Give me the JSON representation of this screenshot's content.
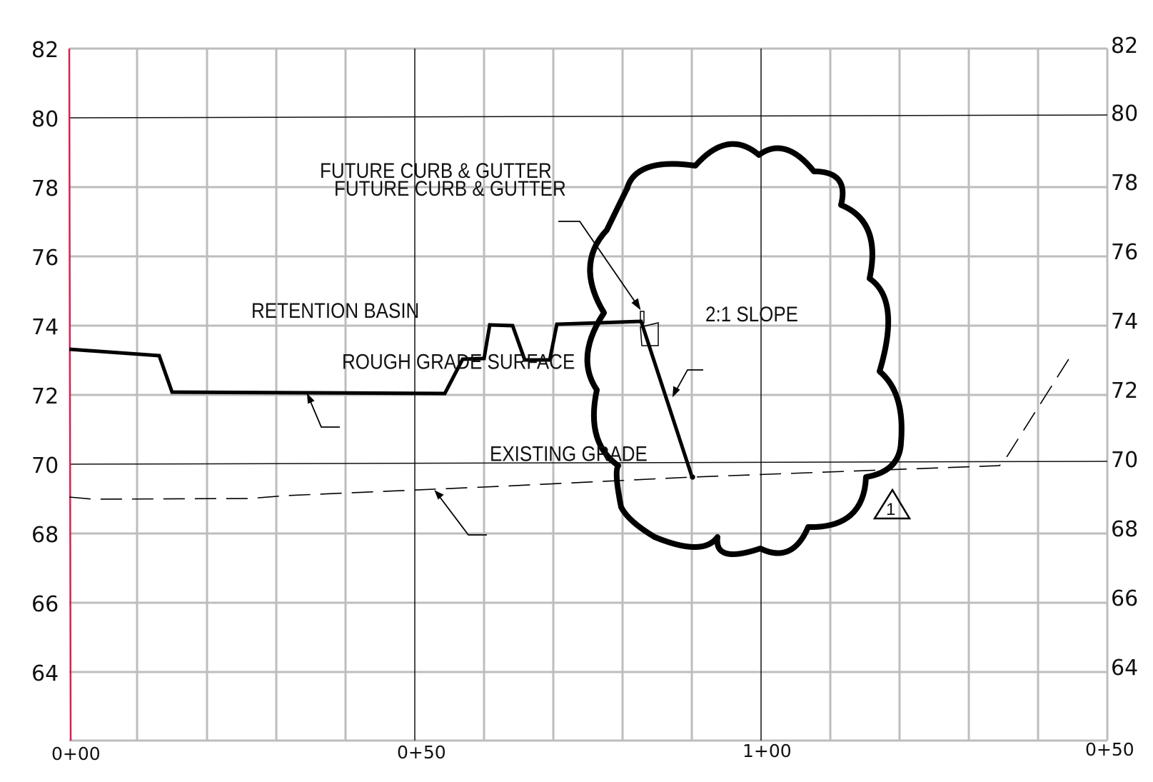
{
  "profile": {
    "elevation_labels_left": [
      "82",
      "80",
      "78",
      "76",
      "74",
      "72",
      "70",
      "68",
      "66",
      "64"
    ],
    "elevation_labels_right": [
      "82",
      "80",
      "78",
      "76",
      "74",
      "72",
      "70",
      "68",
      "66",
      "64"
    ],
    "station_labels": [
      "0+00",
      "0+50",
      "1+00",
      "0+50"
    ],
    "notes": {
      "future_curb_1": "FUTURE CURB & GUTTER",
      "future_curb_2": "FUTURE CURB & GUTTER",
      "retention_basin": "RETENTION BASIN",
      "rough_grade": "ROUGH GRADE SURFACE",
      "slope": "2:1 SLOPE",
      "existing_grade": "EXISTING GRADE"
    },
    "revision_number": "1",
    "colors": {
      "grid_minor": "#bdbdbd",
      "grid_major": "#111111",
      "left_border": "#d6204f",
      "profile_line": "#000000"
    }
  }
}
